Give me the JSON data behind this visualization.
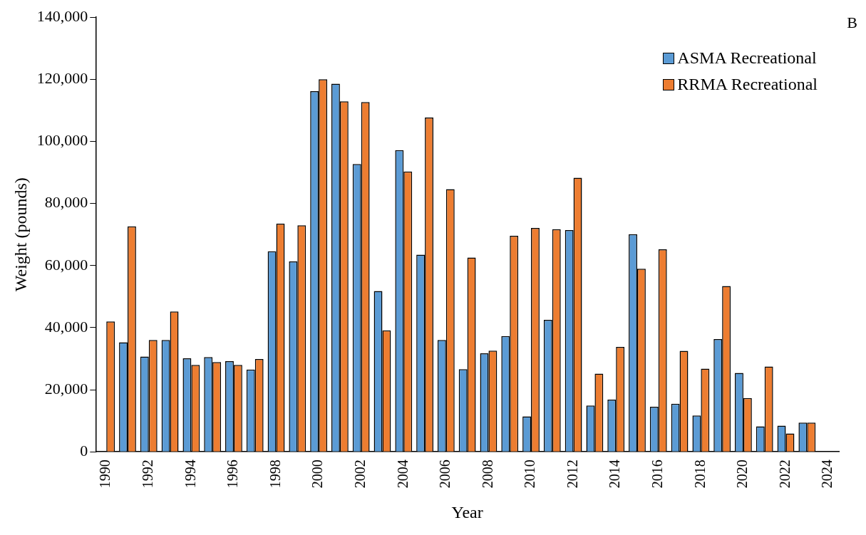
{
  "chart_data": {
    "type": "bar",
    "xlabel": "Year",
    "ylabel": "Weight (pounds)",
    "annotations": [
      "B"
    ],
    "categories": [
      "1990",
      null,
      "1992",
      null,
      "1994",
      null,
      "1996",
      null,
      "1998",
      null,
      "2000",
      null,
      "2002",
      null,
      "2004",
      null,
      "2006",
      null,
      "2008",
      null,
      "2010",
      null,
      "2012",
      null,
      "2014",
      null,
      "2016",
      null,
      "2018",
      null,
      "2020",
      null,
      "2022",
      null,
      "2024"
    ],
    "series": [
      {
        "name": "ASMA Recreational",
        "color": "#5b9bd5",
        "values": [
          null,
          35300,
          30700,
          36000,
          30100,
          30500,
          29200,
          26500,
          64600,
          61300,
          116200,
          118600,
          92700,
          51800,
          97200,
          63500,
          36000,
          26600,
          31700,
          37300,
          11400,
          42500,
          71400,
          14900,
          16800,
          70100,
          14500,
          15500,
          11700,
          36300,
          25400,
          8200,
          8400,
          9400,
          null
        ]
      },
      {
        "name": "RRMA Recreational",
        "color": "#ed7d31",
        "values": [
          42000,
          72600,
          36000,
          45200,
          28000,
          28900,
          28000,
          29900,
          73500,
          73000,
          120000,
          112900,
          112700,
          39100,
          90300,
          107700,
          84600,
          62600,
          32600,
          69600,
          72100,
          71700,
          88300,
          25200,
          33800,
          59000,
          65200,
          32500,
          26800,
          53400,
          17300,
          27500,
          5900,
          9400,
          null
        ]
      }
    ],
    "ylim": [
      0,
      140000
    ],
    "yticks": [
      {
        "value": 0,
        "label": "0"
      },
      {
        "value": 20000,
        "label": "20,000"
      },
      {
        "value": 40000,
        "label": "40,000"
      },
      {
        "value": 60000,
        "label": "60,000"
      },
      {
        "value": 80000,
        "label": "80,000"
      },
      {
        "value": 100000,
        "label": "100,000"
      },
      {
        "value": 120000,
        "label": "120,000"
      },
      {
        "value": 140000,
        "label": "140,000"
      }
    ],
    "grid": false,
    "legend": "top right"
  }
}
